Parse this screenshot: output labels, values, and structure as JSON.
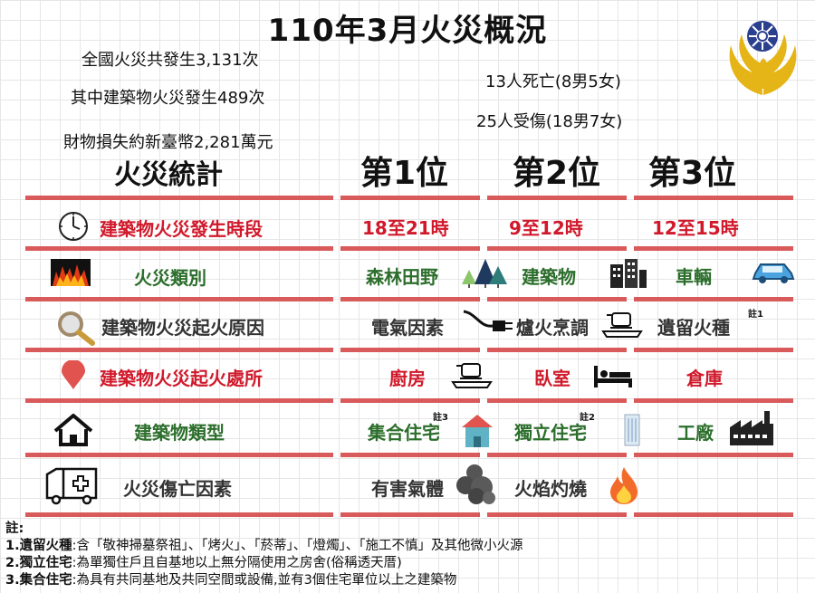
{
  "title": "110年3月火災概況",
  "summary": {
    "total": "全國火災共發生3,131次",
    "building": "其中建築物火災發生489次",
    "loss": "財物損失約新臺幣2,281萬元",
    "deaths": "13人死亡(8男5女)",
    "injuries": "25人受傷(18男7女)"
  },
  "table": {
    "header": "火災統計",
    "ranks": [
      "第1位",
      "第2位",
      "第3位"
    ],
    "rows": [
      {
        "label": "建築物火災發生時段",
        "icon": "clock-icon",
        "values": [
          "18至21時",
          "9至12時",
          "12至15時"
        ]
      },
      {
        "label": "火災類別",
        "icon": "flames-icon",
        "values": [
          "森林田野",
          "建築物",
          "車輛"
        ]
      },
      {
        "label": "建築物火災起火原因",
        "icon": "magnifier-icon",
        "values": [
          "電氣因素",
          "爐火烹調",
          "遺留火種"
        ]
      },
      {
        "label": "建築物火災起火處所",
        "icon": "location-pin-icon",
        "values": [
          "廚房",
          "臥室",
          "倉庫"
        ]
      },
      {
        "label": "建築物類型",
        "icon": "house-icon",
        "values": [
          "集合住宅",
          "獨立住宅",
          "工廠"
        ]
      },
      {
        "label": "火災傷亡因素",
        "icon": "ambulance-icon",
        "values": [
          "有害氣體",
          "火焰灼燒"
        ]
      }
    ],
    "marks": {
      "note1": "註1",
      "note2": "註2",
      "note3": "註3"
    }
  },
  "notes": {
    "heading": "註:",
    "items": [
      {
        "term": "1.遺留火種",
        "text": ":含「敬神掃墓祭祖」、「烤火」、「菸蒂」、「燈燭」、「施工不慎」及其他微小火源"
      },
      {
        "term": "2.獨立住宅",
        "text": ":為單獨住戶且自基地以上無分隔使用之房舍(俗稱透天厝)"
      },
      {
        "term": "3.集合住宅",
        "text": ":為具有共同基地及共同空間或設備,並有3個住宅單位以上之建築物"
      }
    ]
  },
  "colors": {
    "rule": "#d85a5a",
    "red_text": "#d0192b",
    "green_text": "#2c6e2c",
    "emblem_gold": "#e5b417",
    "emblem_blue": "#2b3f8f"
  }
}
